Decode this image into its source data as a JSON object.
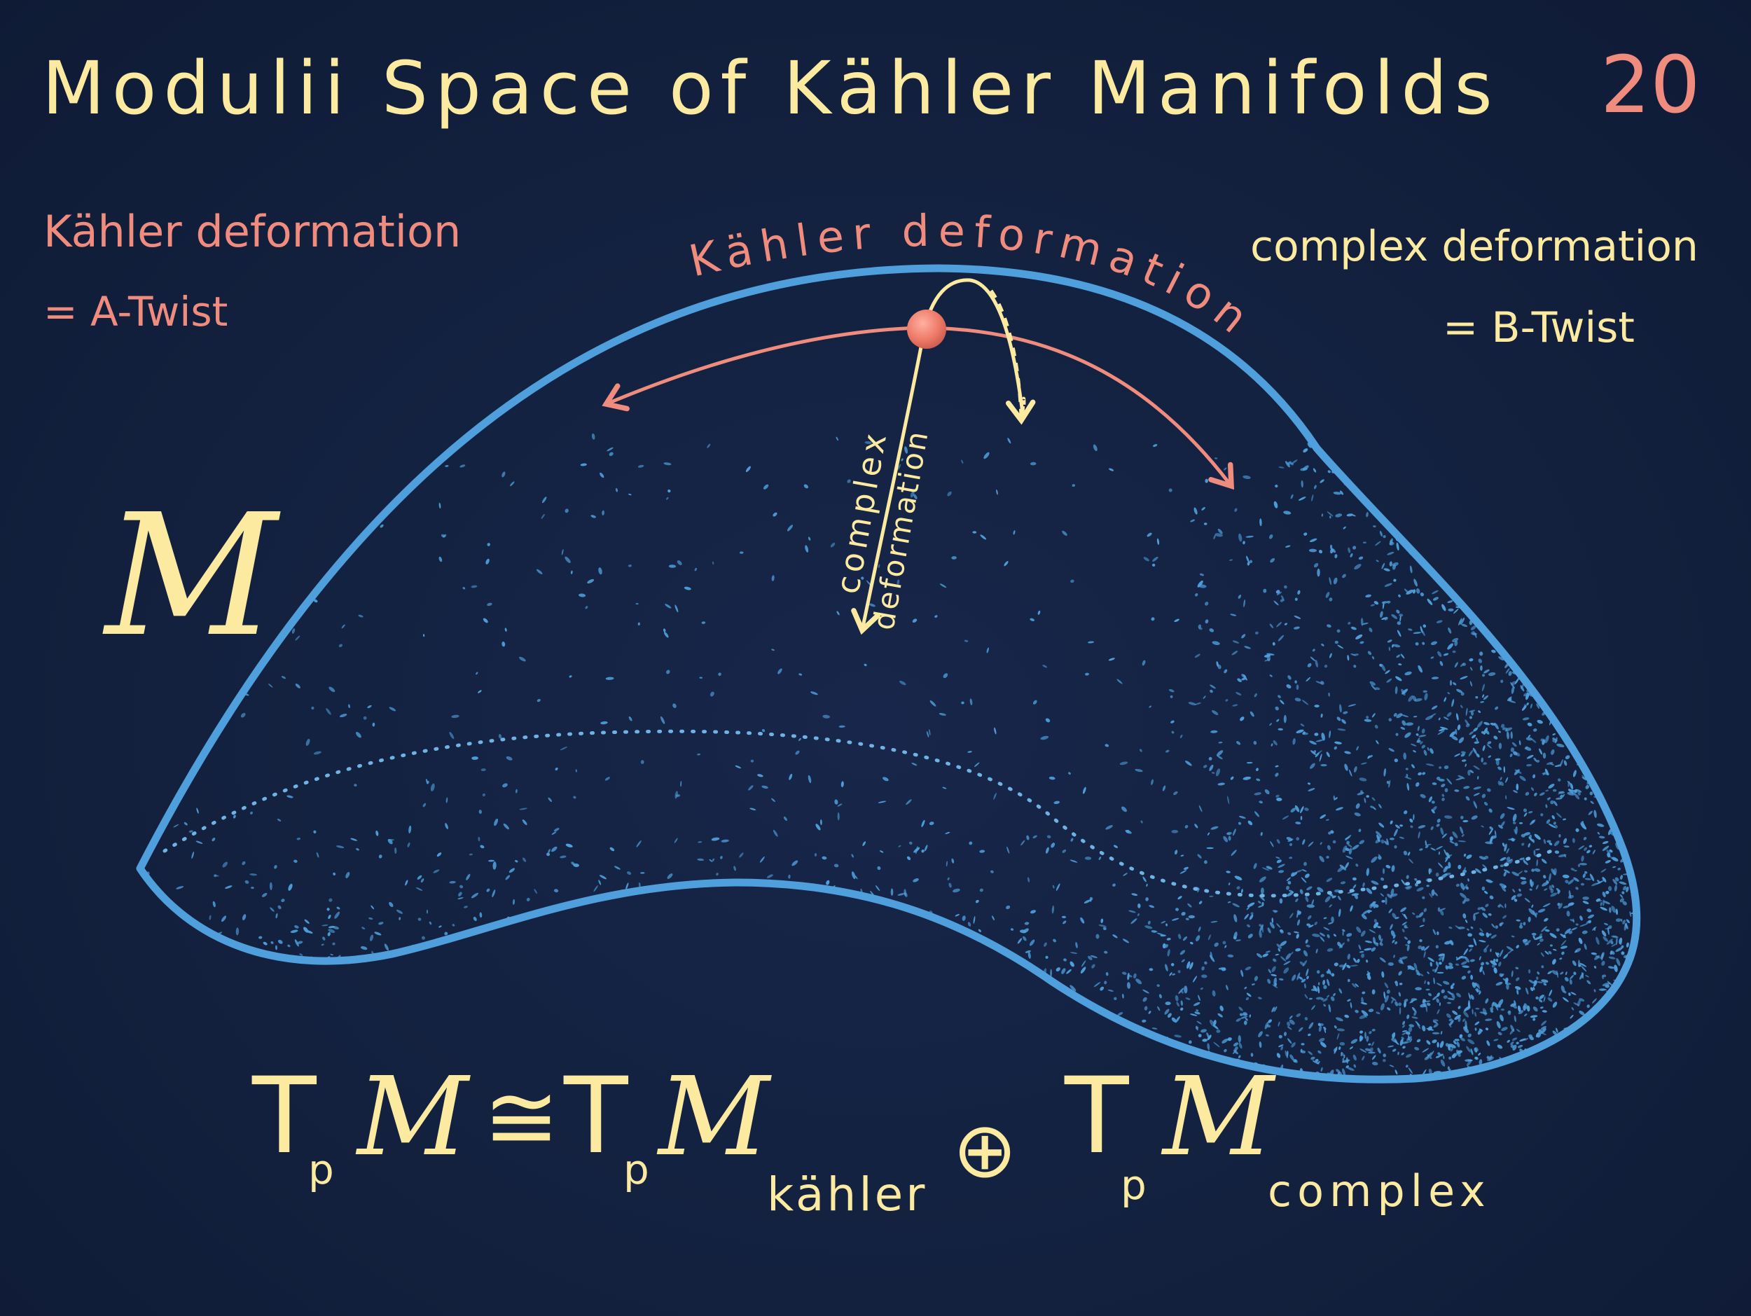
{
  "title": "Modulii Space of Kähler Manifolds",
  "page_number": "20",
  "left_note": {
    "line1": "Kähler deformation",
    "line2": "= A-Twist"
  },
  "right_note": {
    "line1": "complex deformation",
    "line2": "= B-Twist"
  },
  "curve_label": "Kähler deformation",
  "complex_label": {
    "line1": "complex",
    "line2": "deformation"
  },
  "manifold_symbol": "M",
  "formula": {
    "lhs_T": "T",
    "lhs_p": "p",
    "lhs_M": "M",
    "iso": "≅",
    "t1_T": "T",
    "t1_p": "p",
    "t1_M": "M",
    "t1_sub": "kähler",
    "oplus": "⊕",
    "t2_T": "T",
    "t2_p": "p",
    "t2_M": "M",
    "t2_sub": "complex"
  },
  "colors": {
    "background": "#13213f",
    "yellow": "#fbeaa0",
    "salmon": "#f08c7e",
    "blue": "#4e9fdc"
  }
}
